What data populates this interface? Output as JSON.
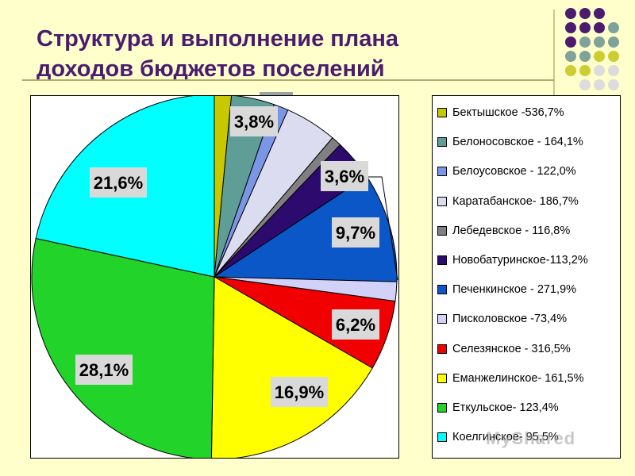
{
  "title": "Структура и выполнение плана доходов бюджетов поселений",
  "colors": {
    "background": "#ffffcc",
    "title": "#4b1c6e",
    "decor_dots": [
      "#4b1c6e",
      "#7fa39b",
      "#cccc33",
      "#dcdcdc"
    ]
  },
  "watermark": "MyShared",
  "chart_data": {
    "type": "pie",
    "title": "",
    "legend_position": "right",
    "slices": [
      {
        "legend": "Бектышское -536,7%",
        "value": 1.5,
        "label": "",
        "color": "#c8c800"
      },
      {
        "legend": "Белоносовское - 164,1%",
        "value": 3.8,
        "label": "3,8%",
        "color": "#5f9e97"
      },
      {
        "legend": "Белоусовское - 122,0%",
        "value": 1.3,
        "label": "",
        "color": "#7b96e6"
      },
      {
        "legend": "Каратабанское- 186,7%",
        "value": 4.6,
        "label": "",
        "color": "#dcdcf0"
      },
      {
        "legend": "Лебедевское - 116,8%",
        "value": 0.9,
        "label": "",
        "color": "#808080"
      },
      {
        "legend": "Новобатуринское-113,2%",
        "value": 3.6,
        "label": "3,6%",
        "color": "#2d0a6e"
      },
      {
        "legend": "Печенкинское - 271,9%",
        "value": 9.7,
        "label": "9,7%",
        "color": "#0b57c8"
      },
      {
        "legend": "Писколовское -73,4%",
        "value": 1.7,
        "label": "",
        "color": "#d2d2f8"
      },
      {
        "legend": "Селезянское - 316,5%",
        "value": 6.2,
        "label": "6,2%",
        "color": "#f00000"
      },
      {
        "legend": "Еманжелинское- 161,5%",
        "value": 16.9,
        "label": "16,9%",
        "color": "#ffff00"
      },
      {
        "legend": "Еткульское- 123,4%",
        "value": 28.1,
        "label": "28,1%",
        "color": "#22d32a"
      },
      {
        "legend": "Коелгинское- 95,5%",
        "value": 21.6,
        "label": "21,6%",
        "color": "#00ffff"
      }
    ]
  }
}
